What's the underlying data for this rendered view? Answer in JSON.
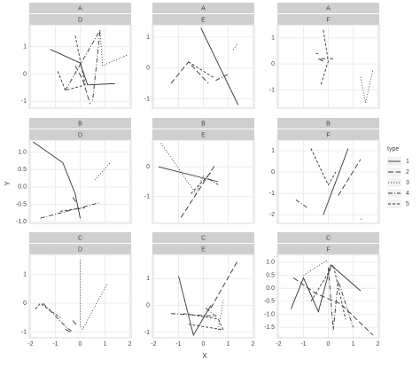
{
  "chart_data": {
    "type": "facet-line",
    "x_label": "X",
    "y_label": "Y",
    "xlim": [
      -2.05,
      2.05
    ],
    "xticks": [
      -2,
      -1,
      0,
      1,
      2
    ],
    "grid": true,
    "legend": {
      "title": "type",
      "position": "right",
      "color": "#333333",
      "items": [
        {
          "name": "1",
          "linetype": "solid"
        },
        {
          "name": "2",
          "linetype": "6,3"
        },
        {
          "name": "3",
          "linetype": "1,2"
        },
        {
          "name": "4",
          "linetype": "5,2,1,2"
        },
        {
          "name": "5",
          "linetype": "3,2"
        }
      ]
    },
    "panels": [
      {
        "row": "A",
        "col": "D",
        "ylim": [
          -1.25,
          1.8
        ],
        "yticks": [
          -1,
          0,
          1
        ],
        "series": [
          {
            "x": [
              -1.2,
              0.0,
              0.3,
              1.4
            ],
            "y": [
              0.9,
              0.4,
              -0.4,
              -0.35
            ]
          },
          {
            "x": [
              -0.2,
              0.1,
              0.4
            ],
            "y": [
              0.3,
              -0.2,
              -1.1
            ]
          },
          {
            "x": [
              0.8,
              0.9,
              1.9
            ],
            "y": [
              1.6,
              0.3,
              0.7
            ]
          },
          {
            "x": [
              -0.6,
              0.8,
              0.5
            ],
            "y": [
              -0.6,
              1.6,
              -1.0
            ]
          },
          {
            "x": [
              -0.9,
              -0.6,
              0.2,
              -0.2
            ],
            "y": [
              0.1,
              -0.6,
              -0.4,
              1.4
            ]
          }
        ]
      },
      {
        "row": "A",
        "col": "E",
        "ylim": [
          -1.3,
          1.4
        ],
        "yticks": [
          -1,
          0,
          1
        ],
        "series": [
          {
            "x": [
              -0.1,
              1.4
            ],
            "y": [
              1.3,
              -1.2
            ]
          },
          {
            "x": [
              -1.3,
              -0.6,
              0.2
            ],
            "y": [
              -0.5,
              0.2,
              -0.5
            ]
          },
          {
            "x": [
              1.2,
              1.4
            ],
            "y": [
              0.6,
              0.8
            ]
          },
          {
            "x": [
              0.5,
              1.0
            ],
            "y": [
              -0.4,
              -0.2
            ]
          },
          {
            "x": [
              -0.6,
              0.4
            ],
            "y": [
              0.2,
              -0.3
            ]
          }
        ]
      },
      {
        "row": "A",
        "col": "F",
        "ylim": [
          -1.7,
          1.5
        ],
        "yticks": [
          -1,
          0,
          1
        ],
        "series": [
          {
            "x": [
              -0.5,
              -0.4
            ],
            "y": [
              0.4,
              0.4
            ]
          },
          {
            "x": [
              -0.4,
              -0.2
            ],
            "y": [
              0.2,
              0.1
            ]
          },
          {
            "x": [
              1.3,
              1.5,
              1.8
            ],
            "y": [
              -0.5,
              -1.5,
              -0.2
            ]
          },
          {
            "x": [
              -0.3,
              0.1,
              0.2
            ],
            "y": [
              0.2,
              0.2,
              0.2
            ]
          },
          {
            "x": [
              -0.2,
              0.0,
              -0.3
            ],
            "y": [
              1.3,
              0.1,
              -0.8
            ]
          }
        ]
      },
      {
        "row": "B",
        "col": "D",
        "ylim": [
          -1.05,
          1.35
        ],
        "yticks": [
          {
            "value": -1,
            "label": "-1.0"
          },
          {
            "value": -0.5,
            "label": "-0.5"
          },
          {
            "value": 0,
            "label": "0.0"
          },
          {
            "value": 0.5,
            "label": "0.5"
          },
          {
            "value": 1,
            "label": "1.0"
          }
        ],
        "series": [
          {
            "x": [
              -1.9,
              -0.7,
              -0.2,
              0.0
            ],
            "y": [
              1.3,
              0.7,
              -0.2,
              -0.9
            ]
          },
          {
            "x": [
              -0.3,
              -0.1
            ],
            "y": [
              -0.3,
              -0.5
            ]
          },
          {
            "x": [
              0.6,
              1.2
            ],
            "y": [
              0.2,
              0.7
            ]
          },
          {
            "x": [
              -1.6,
              0.8
            ],
            "y": [
              -0.9,
              -0.45
            ]
          },
          {
            "x": [
              -0.8,
              0.2
            ],
            "y": [
              -0.7,
              -0.6
            ]
          }
        ]
      },
      {
        "row": "B",
        "col": "E",
        "ylim": [
          -1.9,
          0.9
        ],
        "yticks": [
          -1,
          0
        ],
        "series": [
          {
            "x": [
              -1.8,
              0.6
            ],
            "y": [
              0.0,
              -0.5
            ]
          },
          {
            "x": [
              -0.9,
              0.5
            ],
            "y": [
              -1.7,
              0.1
            ]
          },
          {
            "x": [
              -1.7,
              -0.3,
              0.0
            ],
            "y": [
              0.8,
              -0.9,
              -0.3
            ]
          },
          {
            "x": [
              0.2,
              0.6
            ],
            "y": [
              -0.4,
              -0.6
            ]
          },
          {
            "x": [
              -0.5,
              0.3
            ],
            "y": [
              -0.9,
              -0.2
            ]
          }
        ]
      },
      {
        "row": "B",
        "col": "F",
        "ylim": [
          -2.4,
          1.5
        ],
        "yticks": [
          -2,
          -1,
          0,
          1
        ],
        "series": [
          {
            "x": [
              -0.2,
              0.8
            ],
            "y": [
              -2.0,
              1.1
            ]
          },
          {
            "x": [
              0.4,
              1.3
            ],
            "y": [
              -1.1,
              0.6
            ]
          },
          {
            "x": [
              1.3,
              1.4
            ],
            "y": [
              -2.2,
              -2.2
            ]
          },
          {
            "x": [
              -1.3,
              -0.8
            ],
            "y": [
              -1.3,
              -1.7
            ]
          },
          {
            "x": [
              -0.7,
              0.0,
              0.3
            ],
            "y": [
              1.1,
              -0.6,
              0.0
            ]
          }
        ]
      },
      {
        "row": "C",
        "col": "D",
        "ylim": [
          -1.2,
          1.7
        ],
        "yticks": [
          -1,
          0,
          1
        ],
        "series": [
          {
            "x": [
              -0.6,
              -0.4
            ],
            "y": [
              -0.9,
              -1.0
            ]
          },
          {
            "x": [
              -0.3,
              -0.1
            ],
            "y": [
              -0.6,
              -0.8
            ]
          },
          {
            "x": [
              0.0,
              0.0,
              0.1,
              1.1
            ],
            "y": [
              1.5,
              -0.8,
              -0.9,
              0.7
            ]
          },
          {
            "x": [
              -1.5,
              -0.6,
              -0.3
            ],
            "y": [
              0.0,
              -0.8,
              -1.0
            ]
          },
          {
            "x": [
              -1.8,
              -1.6,
              -0.8
            ],
            "y": [
              -0.2,
              0.0,
              -0.5
            ]
          }
        ]
      },
      {
        "row": "C",
        "col": "E",
        "ylim": [
          -1.2,
          1.9
        ],
        "yticks": [
          -1,
          0,
          1
        ],
        "series": [
          {
            "x": [
              -1.0,
              -0.4,
              0.3
            ],
            "y": [
              1.1,
              -1.1,
              0.0
            ]
          },
          {
            "x": [
              0.3,
              1.4
            ],
            "y": [
              -0.1,
              1.7
            ]
          },
          {
            "x": [
              0.6,
              0.8
            ],
            "y": [
              -0.9,
              0.2
            ]
          },
          {
            "x": [
              -1.3,
              0.5,
              0.1
            ],
            "y": [
              -0.3,
              -0.4,
              -0.1
            ]
          },
          {
            "x": [
              -0.8,
              0.6,
              0.8,
              -0.6
            ],
            "y": [
              -0.3,
              -0.5,
              -0.9,
              -0.7
            ]
          }
        ]
      },
      {
        "row": "C",
        "col": "F",
        "ylim": [
          -1.9,
          1.3
        ],
        "yticks": [
          {
            "value": -1.5,
            "label": "-1.5"
          },
          {
            "value": -1,
            "label": "-1.0"
          },
          {
            "value": -0.5,
            "label": "-0.5"
          },
          {
            "value": 0,
            "label": "0.0"
          },
          {
            "value": 0.5,
            "label": "0.5"
          },
          {
            "value": 1,
            "label": "1.0"
          }
        ],
        "series": [
          {
            "x": [
              -1.5,
              -1.0,
              -0.4,
              0.1,
              1.3
            ],
            "y": [
              -0.8,
              0.4,
              -0.9,
              0.9,
              -0.1
            ]
          },
          {
            "x": [
              -1.4,
              -0.5,
              0.5,
              1.8
            ],
            "y": [
              0.4,
              -0.2,
              -0.6,
              -1.8
            ]
          },
          {
            "x": [
              -1.0,
              0.0
            ],
            "y": [
              0.5,
              1.1
            ]
          },
          {
            "x": [
              0.0,
              0.2,
              0.4,
              1.0
            ],
            "y": [
              0.8,
              -1.6,
              0.3,
              -1.5
            ]
          },
          {
            "x": [
              -0.7,
              0.2,
              0.7
            ],
            "y": [
              -0.5,
              0.9,
              -1.2
            ]
          }
        ]
      }
    ]
  }
}
